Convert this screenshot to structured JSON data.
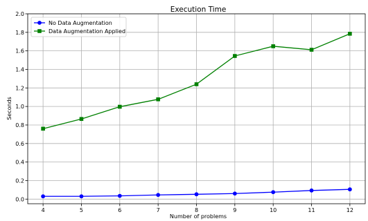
{
  "chart_data": {
    "type": "line",
    "title": "Execution Time",
    "xlabel": "Number of problems",
    "ylabel": "Seconds",
    "x": [
      4,
      5,
      6,
      7,
      8,
      9,
      10,
      11,
      12
    ],
    "xlim": [
      3.6,
      12.4
    ],
    "ylim": [
      -0.05,
      2.0
    ],
    "yticks": [
      0.0,
      0.2,
      0.4,
      0.6,
      0.8,
      1.0,
      1.2,
      1.4,
      1.6,
      1.8,
      2.0
    ],
    "ytick_labels": [
      "0.0",
      "0.2",
      "0.4",
      "0.6",
      "0.8",
      "1.0",
      "1.2",
      "1.4",
      "1.6",
      "1.8",
      "2.0"
    ],
    "xticks": [
      4,
      5,
      6,
      7,
      8,
      9,
      10,
      11,
      12
    ],
    "xtick_labels": [
      "4",
      "5",
      "6",
      "7",
      "8",
      "9",
      "10",
      "11",
      "12"
    ],
    "grid": true,
    "legend_position": "top-left",
    "series": [
      {
        "name": "No Data Augmentation",
        "color": "#0000ff",
        "marker": "circle",
        "values": [
          0.03,
          0.03,
          0.035,
          0.045,
          0.052,
          0.06,
          0.075,
          0.093,
          0.105
        ]
      },
      {
        "name": "Data Augmentation Applied",
        "color": "#008000",
        "marker": "square",
        "values": [
          0.76,
          0.865,
          0.997,
          1.077,
          1.24,
          1.545,
          1.65,
          1.612,
          1.785
        ]
      }
    ]
  }
}
